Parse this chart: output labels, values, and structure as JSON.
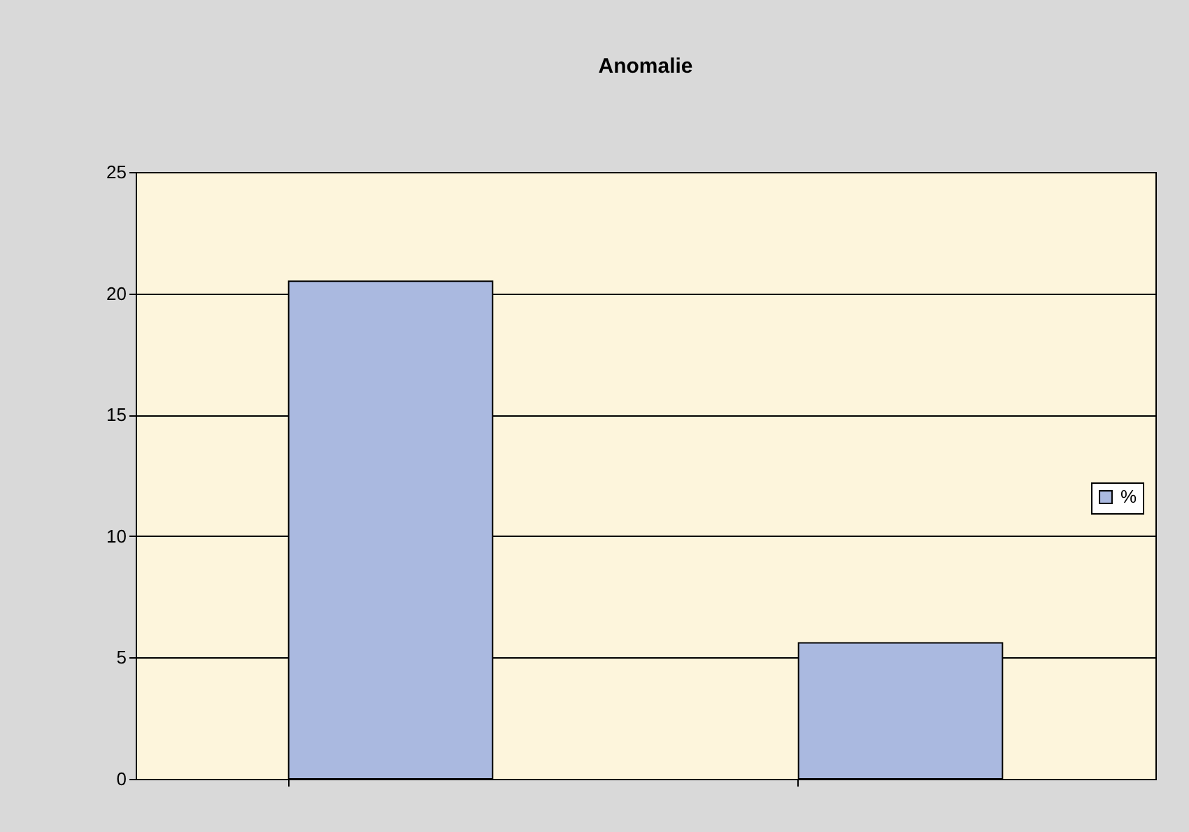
{
  "chart_data": {
    "type": "bar",
    "title": "Anomalie",
    "categories": [
      null,
      null
    ],
    "series": [
      {
        "name": "%",
        "color": "#aab9e0",
        "values": [
          20.5,
          5.6
        ]
      }
    ],
    "ylim": [
      0,
      25
    ],
    "yticks": [
      0,
      5,
      10,
      15,
      20,
      25
    ],
    "grid": "y",
    "legend": "right",
    "tick_labels": "y"
  }
}
